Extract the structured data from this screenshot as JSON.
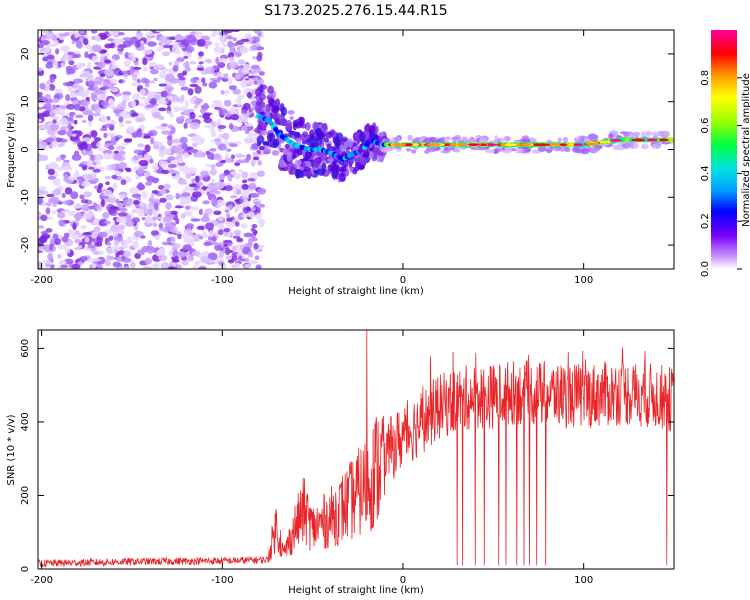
{
  "title": "S173.2025.276.15.44.R15",
  "chart_data": [
    {
      "type": "heatmap",
      "name": "spectrogram",
      "xlabel": "Height of straight line (km)",
      "ylabel": "Frequency (Hz)",
      "xlim": [
        -202,
        150
      ],
      "ylim": [
        -25,
        25
      ],
      "xticks": [
        -200,
        -100,
        0,
        100
      ],
      "yticks": [
        -20,
        -10,
        0,
        10,
        20
      ],
      "noise_region_x": [
        -202,
        -78
      ],
      "signal_track": [
        {
          "x": -80,
          "y": 7
        },
        {
          "x": -74,
          "y": 6
        },
        {
          "x": -68,
          "y": 3
        },
        {
          "x": -60,
          "y": 1
        },
        {
          "x": -52,
          "y": 0
        },
        {
          "x": -45,
          "y": 0
        },
        {
          "x": -38,
          "y": -1
        },
        {
          "x": -33,
          "y": -2
        },
        {
          "x": -28,
          "y": -1
        },
        {
          "x": -22,
          "y": 0
        },
        {
          "x": -18,
          "y": 2
        },
        {
          "x": -12,
          "y": 1
        },
        {
          "x": 0,
          "y": 1
        },
        {
          "x": 20,
          "y": 1
        },
        {
          "x": 40,
          "y": 1
        },
        {
          "x": 60,
          "y": 1
        },
        {
          "x": 80,
          "y": 1
        },
        {
          "x": 100,
          "y": 1
        },
        {
          "x": 120,
          "y": 2
        },
        {
          "x": 150,
          "y": 2
        }
      ],
      "colorbar": {
        "label": "Normalized spectral amplitude",
        "range": [
          0.0,
          1.0
        ],
        "ticks": [
          "0.0",
          "0.2",
          "0.4",
          "0.6",
          "0.8"
        ],
        "colors": [
          "#ffffff",
          "#cc99ff",
          "#7a00ff",
          "#0000ff",
          "#00a0ff",
          "#00e0e0",
          "#00ff40",
          "#a0ff00",
          "#ffff00",
          "#ff9900",
          "#ff0000",
          "#ff0099"
        ]
      }
    },
    {
      "type": "line",
      "name": "snr",
      "xlabel": "Height of straight line (km)",
      "ylabel": "SNR (10 * v/v)",
      "xlim": [
        -202,
        150
      ],
      "ylim": [
        0,
        650
      ],
      "xticks": [
        -200,
        -100,
        0,
        100
      ],
      "yticks": [
        0,
        200,
        400,
        600
      ],
      "color": "#e8262a",
      "series_points": [
        {
          "x": -202,
          "y": 15
        },
        {
          "x": -150,
          "y": 20
        },
        {
          "x": -100,
          "y": 22
        },
        {
          "x": -75,
          "y": 25
        },
        {
          "x": -70,
          "y": 120
        },
        {
          "x": -66,
          "y": 40
        },
        {
          "x": -60,
          "y": 110
        },
        {
          "x": -55,
          "y": 160
        },
        {
          "x": -50,
          "y": 110
        },
        {
          "x": -40,
          "y": 140
        },
        {
          "x": -30,
          "y": 180
        },
        {
          "x": -20,
          "y": 230
        },
        {
          "x": -10,
          "y": 310
        },
        {
          "x": 0,
          "y": 360
        },
        {
          "x": 10,
          "y": 400
        },
        {
          "x": 20,
          "y": 440
        },
        {
          "x": 30,
          "y": 460
        },
        {
          "x": 40,
          "y": 470
        },
        {
          "x": 50,
          "y": 470
        },
        {
          "x": 60,
          "y": 480
        },
        {
          "x": 80,
          "y": 475
        },
        {
          "x": 100,
          "y": 470
        },
        {
          "x": 120,
          "y": 480
        },
        {
          "x": 140,
          "y": 470
        },
        {
          "x": 150,
          "y": 460
        }
      ],
      "spike": {
        "x": -20,
        "y": 650
      },
      "dropouts_x": [
        30,
        33,
        40,
        45,
        53,
        57,
        63,
        67,
        70,
        74,
        79,
        146
      ]
    }
  ]
}
